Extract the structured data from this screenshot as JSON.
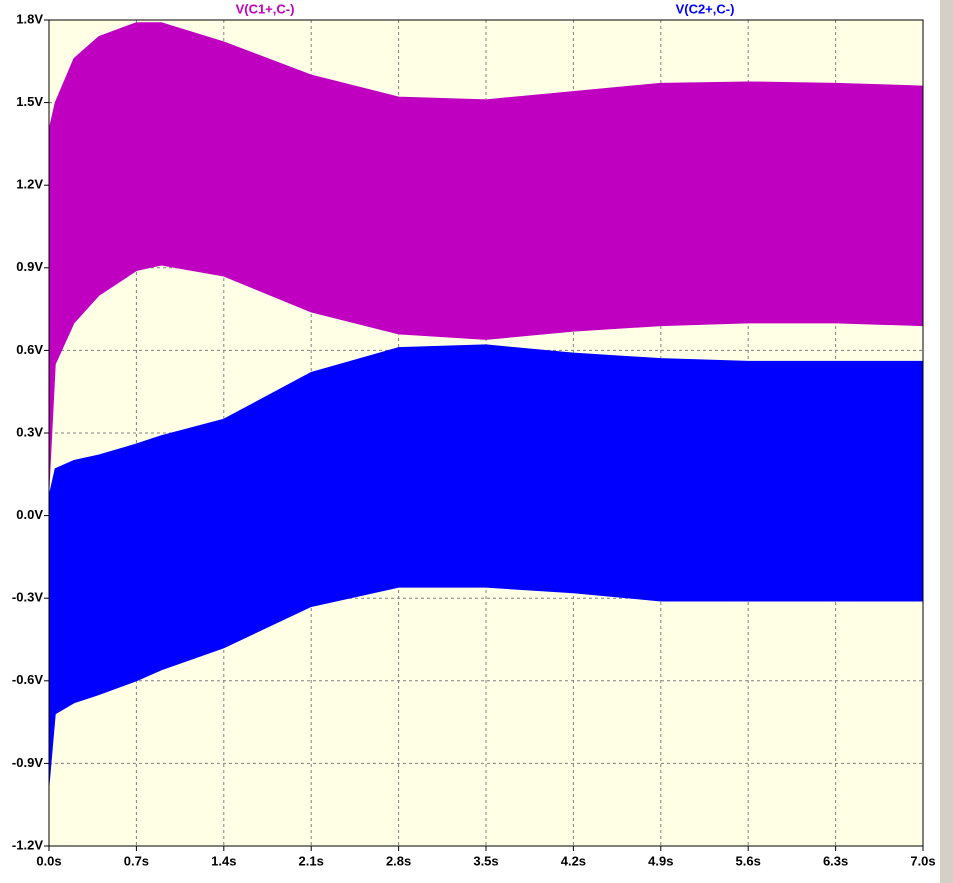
{
  "chart_data": {
    "type": "band",
    "x": [
      0,
      0.05,
      0.2,
      0.4,
      0.7,
      0.9,
      1.4,
      2.1,
      2.8,
      3.5,
      4.2,
      4.9,
      5.6,
      6.3,
      7.0
    ],
    "series": [
      {
        "name": "V(C1+,C-)",
        "color": "#c000c0",
        "upper": [
          1.4,
          1.5,
          1.66,
          1.74,
          1.79,
          1.79,
          1.72,
          1.6,
          1.52,
          1.51,
          1.54,
          1.57,
          1.575,
          1.57,
          1.56
        ],
        "lower": [
          0.1,
          0.55,
          0.7,
          0.8,
          0.89,
          0.91,
          0.87,
          0.74,
          0.66,
          0.64,
          0.67,
          0.69,
          0.7,
          0.7,
          0.69
        ]
      },
      {
        "name": "V(C2+,C-)",
        "color": "#0000ff",
        "upper": [
          0.07,
          0.17,
          0.2,
          0.22,
          0.26,
          0.29,
          0.35,
          0.52,
          0.61,
          0.62,
          0.59,
          0.57,
          0.56,
          0.56,
          0.56
        ],
        "lower": [
          -0.98,
          -0.72,
          -0.68,
          -0.65,
          -0.6,
          -0.56,
          -0.48,
          -0.33,
          -0.26,
          -0.26,
          -0.28,
          -0.31,
          -0.31,
          -0.31,
          -0.31
        ]
      }
    ],
    "xlim": [
      0,
      7.0
    ],
    "ylim": [
      -1.2,
      1.8
    ],
    "xticks": [
      {
        "value": 0,
        "label": "0.0s"
      },
      {
        "value": 0.7,
        "label": "0.7s"
      },
      {
        "value": 1.4,
        "label": "1.4s"
      },
      {
        "value": 2.1,
        "label": "2.1s"
      },
      {
        "value": 2.8,
        "label": "2.8s"
      },
      {
        "value": 3.5,
        "label": "3.5s"
      },
      {
        "value": 4.2,
        "label": "4.2s"
      },
      {
        "value": 4.9,
        "label": "4.9s"
      },
      {
        "value": 5.6,
        "label": "5.6s"
      },
      {
        "value": 6.3,
        "label": "6.3s"
      },
      {
        "value": 7.0,
        "label": "7.0s"
      }
    ],
    "yticks": [
      {
        "value": -1.2,
        "label": "-1.2V"
      },
      {
        "value": -0.9,
        "label": "-0.9V"
      },
      {
        "value": -0.6,
        "label": "-0.6V"
      },
      {
        "value": -0.3,
        "label": "-0.3V"
      },
      {
        "value": 0,
        "label": "0.0V"
      },
      {
        "value": 0.3,
        "label": "0.3V"
      },
      {
        "value": 0.6,
        "label": "0.6V"
      },
      {
        "value": 0.9,
        "label": "0.9V"
      },
      {
        "value": 1.2,
        "label": "1.2V"
      },
      {
        "value": 1.5,
        "label": "1.5V"
      },
      {
        "value": 1.8,
        "label": "1.8V"
      }
    ],
    "grid": true
  }
}
